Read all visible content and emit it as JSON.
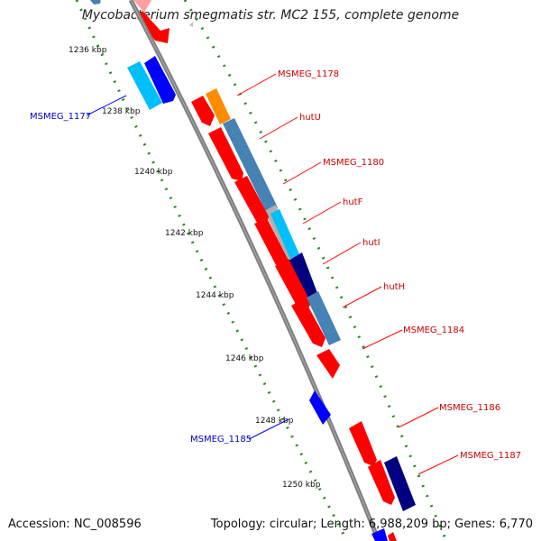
{
  "title": "Mycobacterium smegmatis str. MC2 155, complete genome",
  "footer": {
    "accession_label": "Accession: NC_008596",
    "stats_label": "Topology: circular; Length: 6,988,209 bp; Genes: 6,770"
  },
  "colors": {
    "forward_strand": "#ff0000",
    "label_forward": "#cc0000",
    "label_reverse": "#0000cc",
    "tick_green": "#228b22",
    "backbone": "#7f7f7f",
    "steel_blue": "#4682b4",
    "navy": "#000080",
    "light_blue": "#00bfff",
    "orange": "#ff8c00",
    "gray": "#b0b0b0",
    "blue": "#0000ff"
  },
  "ticks": [
    "1236 kbp",
    "1238 kbp",
    "1240 kbp",
    "1242 kbp",
    "1244 kbp",
    "1246 kbp",
    "1248 kbp",
    "1250 kbp"
  ],
  "gene_labels": [
    {
      "text": "MSMEG_1178",
      "strand": "forward"
    },
    {
      "text": "hutU",
      "strand": "forward"
    },
    {
      "text": "MSMEG_1180",
      "strand": "forward"
    },
    {
      "text": "hutF",
      "strand": "forward"
    },
    {
      "text": "hutI",
      "strand": "forward"
    },
    {
      "text": "hutH",
      "strand": "forward"
    },
    {
      "text": "MSMEG_1184",
      "strand": "forward"
    },
    {
      "text": "MSMEG_1186",
      "strand": "forward"
    },
    {
      "text": "MSMEG_1187",
      "strand": "forward"
    },
    {
      "text": "MSMEG_1177",
      "strand": "reverse"
    },
    {
      "text": "MSMEG_1185",
      "strand": "reverse"
    }
  ]
}
